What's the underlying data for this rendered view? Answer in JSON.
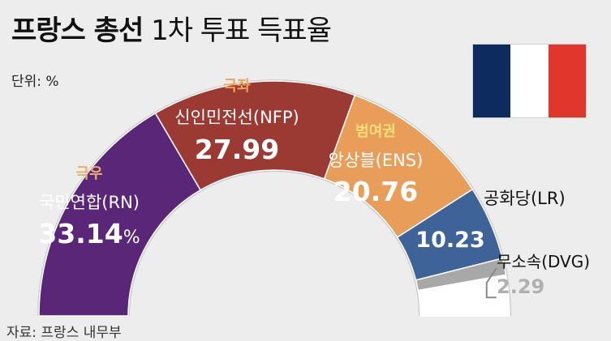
{
  "title_bold": "프랑스 총선",
  "title_light": "1차 투표 득표율",
  "unit_label": "단위: %",
  "source": "자료: 프랑스 내무부",
  "flag": {
    "colors": [
      "#0d2b5e",
      "#ffffff",
      "#e1362c"
    ]
  },
  "chart_data": {
    "type": "pie",
    "subtype": "semicircle-donut",
    "title": "프랑스 총선 1차 투표 득표율",
    "unit": "%",
    "slices": [
      {
        "group": "극우",
        "label": "국민연합(RN)",
        "value": 33.14,
        "value_text": "33.14",
        "suffix": "%",
        "color": "#5a2778",
        "group_color": "#e8b06b"
      },
      {
        "group": "극좌",
        "label": "신인민전선(NFP)",
        "value": 27.99,
        "value_text": "27.99",
        "suffix": "",
        "color": "#9b3a33",
        "group_color": "#f0a35a"
      },
      {
        "group": "범여권",
        "label": "앙상블(ENS)",
        "value": 20.76,
        "value_text": "20.76",
        "suffix": "",
        "color": "#e89e59",
        "group_color": "#ffe07a"
      },
      {
        "group": "",
        "label": "공화당(LR)",
        "value": 10.23,
        "value_text": "10.23",
        "suffix": "",
        "color": "#3d6398",
        "group_color": ""
      },
      {
        "group": "",
        "label": "무소속(DVG)",
        "value": 2.29,
        "value_text": "2.29",
        "suffix": "",
        "color": "#a8a8a8",
        "group_color": ""
      },
      {
        "group": "",
        "label": "",
        "value": 5.59,
        "value_text": "",
        "suffix": "",
        "color": "#ffffff",
        "group_color": ""
      }
    ]
  }
}
